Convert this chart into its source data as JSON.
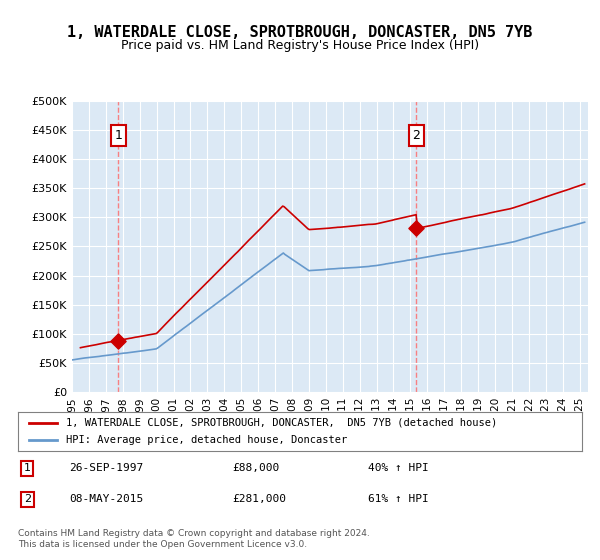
{
  "title": "1, WATERDALE CLOSE, SPROTBROUGH, DONCASTER, DN5 7YB",
  "subtitle": "Price paid vs. HM Land Registry's House Price Index (HPI)",
  "title_fontsize": 11,
  "subtitle_fontsize": 9,
  "bg_color": "#dce9f5",
  "plot_bg_color": "#dce9f5",
  "legend_line1": "1, WATERDALE CLOSE, SPROTBROUGH, DONCASTER,  DN5 7YB (detached house)",
  "legend_line2": "HPI: Average price, detached house, Doncaster",
  "red_line_color": "#cc0000",
  "blue_line_color": "#6699cc",
  "purchase1_year": 1997.74,
  "purchase1_price": 88000,
  "purchase2_year": 2015.35,
  "purchase2_price": 281000,
  "annotation1_label": "1",
  "annotation2_label": "2",
  "note1": "26-SEP-1997",
  "note1_price": "£88,000",
  "note1_hpi": "40% ↑ HPI",
  "note2": "08-MAY-2015",
  "note2_price": "£281,000",
  "note2_hpi": "61% ↑ HPI",
  "footer": "Contains HM Land Registry data © Crown copyright and database right 2024.\nThis data is licensed under the Open Government Licence v3.0.",
  "ylim": [
    0,
    500000
  ],
  "xlim_start": 1995.0,
  "xlim_end": 2025.5
}
